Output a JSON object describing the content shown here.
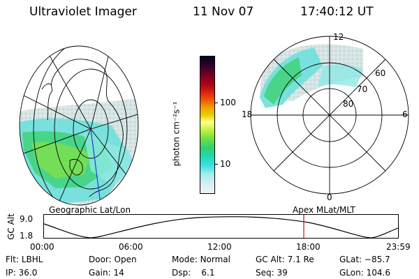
{
  "header": {
    "title": "Ultraviolet Imager",
    "date": "11 Nov 07",
    "time": "17:40:12 UT"
  },
  "colorbar": {
    "unit_label": "photon cm⁻²s⁻¹",
    "ticks": [
      "100",
      "10"
    ]
  },
  "geo_panel": {
    "caption": "Geographic Lat/Lon"
  },
  "apex_panel": {
    "caption": "Apex  MLat/MLT",
    "lat_labels": [
      "60",
      "70",
      "80"
    ],
    "mlt_labels": {
      "top": "12",
      "left": "18",
      "right": "6",
      "bottom": "0"
    }
  },
  "altitude_plot": {
    "ylabel": "GC Alt",
    "yticks": [
      "9.0",
      "1.8"
    ],
    "xticks": [
      "00:00",
      "06:00",
      "12:00",
      "18:00",
      "23:59"
    ],
    "marker_color": "#cc2222"
  },
  "info": {
    "filter_label": "Flt:",
    "filter_value": "LBHL",
    "ip_label": "IP:",
    "ip_value": "36.0",
    "door_label": "Door:",
    "door_value": "Open",
    "gain_label": "Gain:",
    "gain_value": "14",
    "mode_label": "Mode:",
    "mode_value": "Normal",
    "dsp_label": "Dsp:",
    "dsp_value": "6.1",
    "gcalt_label": "GC Alt:",
    "gcalt_value": "7.1 Re",
    "seq_label": "Seq:",
    "seq_value": "39",
    "glat_label": "GLat:",
    "glat_value": "−85.7",
    "glon_label": "GLon:",
    "glon_value": "104.6"
  }
}
